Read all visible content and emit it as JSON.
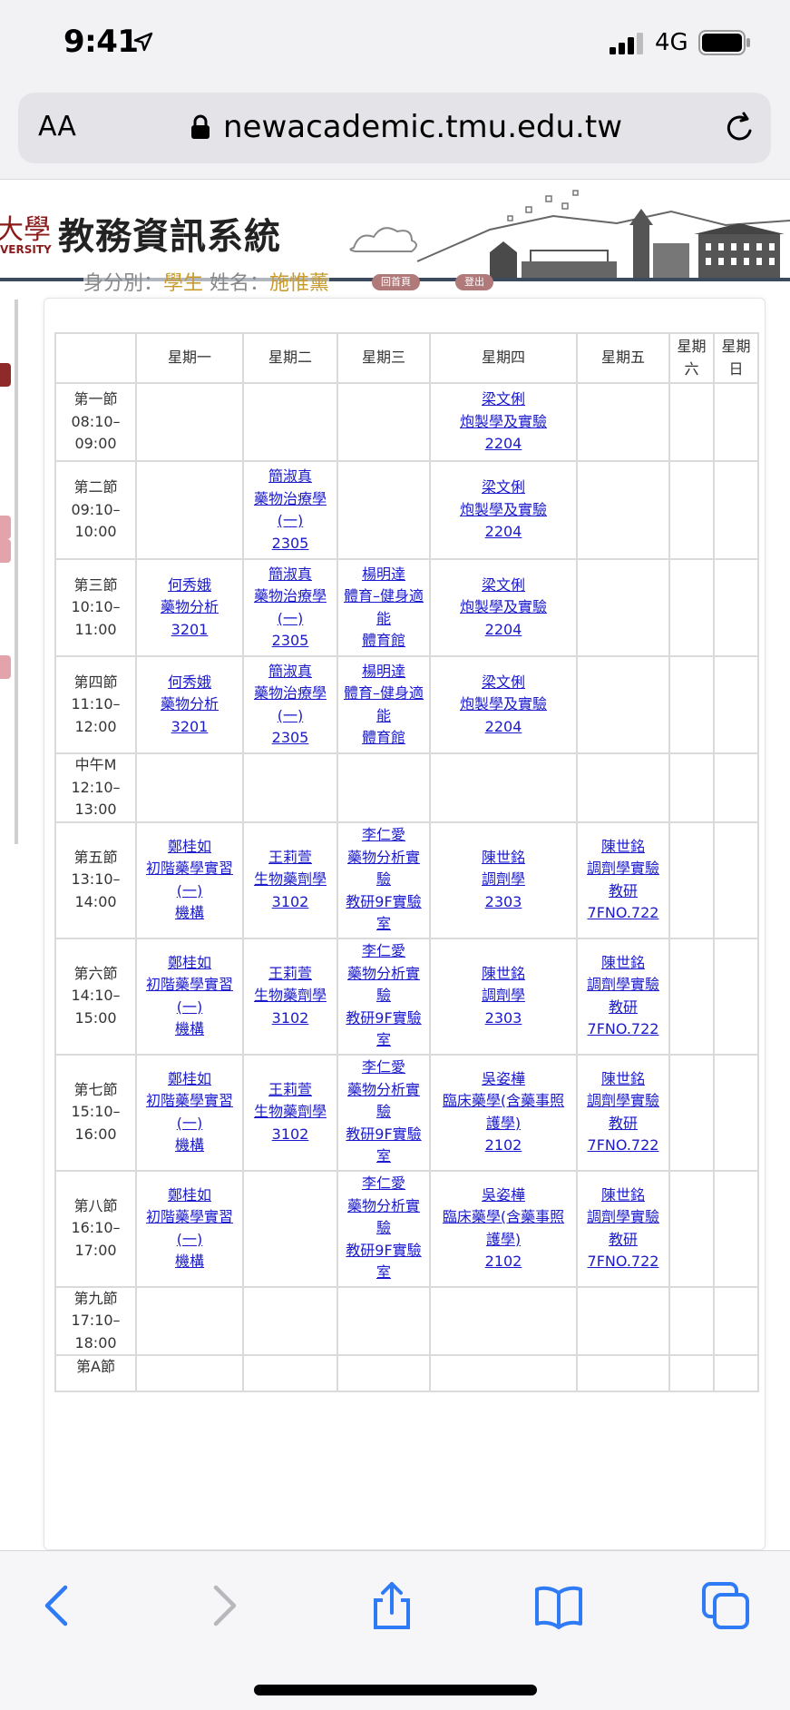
{
  "status": {
    "time": "9:41",
    "network": "4G"
  },
  "browser": {
    "text_size_label": "AA",
    "url": "newacademic.tmu.edu.tw"
  },
  "header": {
    "logo_fragment": "大學",
    "logo_sub": "VERSITY",
    "title": "教務資訊系統",
    "identity_label": "身分別：",
    "identity_value": "學生",
    "name_label": "姓名：",
    "name_value": "施惟薰",
    "home_label": "回首頁",
    "logout_label": "登出"
  },
  "schedule": {
    "columns": [
      "",
      "星期一",
      "星期二",
      "星期三",
      "星期四",
      "星期五",
      "星期六",
      "星期日"
    ],
    "rows": [
      {
        "period": [
          "第一節",
          "08:10–",
          "09:00"
        ],
        "cells": [
          [],
          [],
          [],
          [
            "梁文俐",
            "炮製學及實驗",
            "2204"
          ],
          [],
          [],
          []
        ]
      },
      {
        "period": [
          "第二節",
          "09:10–",
          "10:00"
        ],
        "cells": [
          [],
          [
            "簡淑真",
            "藥物治療學",
            "(一)",
            "2305"
          ],
          [],
          [
            "梁文俐",
            "炮製學及實驗",
            "2204"
          ],
          [],
          [],
          []
        ]
      },
      {
        "period": [
          "第三節",
          "10:10–",
          "11:00"
        ],
        "cells": [
          [
            "何秀娥",
            "藥物分析",
            "3201"
          ],
          [
            "簡淑真",
            "藥物治療學",
            "(一)",
            "2305"
          ],
          [
            "楊明達",
            "體育–健身適",
            "能",
            "體育館"
          ],
          [
            "梁文俐",
            "炮製學及實驗",
            "2204"
          ],
          [],
          [],
          []
        ]
      },
      {
        "period": [
          "第四節",
          "11:10–",
          "12:00"
        ],
        "cells": [
          [
            "何秀娥",
            "藥物分析",
            "3201"
          ],
          [
            "簡淑真",
            "藥物治療學",
            "(一)",
            "2305"
          ],
          [
            "楊明達",
            "體育–健身適",
            "能",
            "體育館"
          ],
          [
            "梁文俐",
            "炮製學及實驗",
            "2204"
          ],
          [],
          [],
          []
        ]
      },
      {
        "period": [
          "中午M",
          "12:10–",
          "13:00"
        ],
        "cells": [
          [],
          [],
          [],
          [],
          [],
          [],
          []
        ]
      },
      {
        "period": [
          "第五節",
          "13:10–",
          "14:00"
        ],
        "cells": [
          [
            "鄭桂如",
            "初階藥學實習",
            "(一)",
            "機構"
          ],
          [
            "王莉萱",
            "生物藥劑學",
            "3102"
          ],
          [
            "李仁愛",
            "藥物分析實",
            "驗",
            "教研9F實驗",
            "室"
          ],
          [
            "陳世銘",
            "調劑學",
            "2303"
          ],
          [
            "陳世銘",
            "調劑學實驗",
            "教研",
            "7FNO.722"
          ],
          [],
          []
        ]
      },
      {
        "period": [
          "第六節",
          "14:10–",
          "15:00"
        ],
        "cells": [
          [
            "鄭桂如",
            "初階藥學實習",
            "(一)",
            "機構"
          ],
          [
            "王莉萱",
            "生物藥劑學",
            "3102"
          ],
          [
            "李仁愛",
            "藥物分析實",
            "驗",
            "教研9F實驗",
            "室"
          ],
          [
            "陳世銘",
            "調劑學",
            "2303"
          ],
          [
            "陳世銘",
            "調劑學實驗",
            "教研",
            "7FNO.722"
          ],
          [],
          []
        ]
      },
      {
        "period": [
          "第七節",
          "15:10–",
          "16:00"
        ],
        "cells": [
          [
            "鄭桂如",
            "初階藥學實習",
            "(一)",
            "機構"
          ],
          [
            "王莉萱",
            "生物藥劑學",
            "3102"
          ],
          [
            "李仁愛",
            "藥物分析實",
            "驗",
            "教研9F實驗",
            "室"
          ],
          [
            "吳姿樺",
            "臨床藥學(含藥事照",
            "護學)",
            "2102"
          ],
          [
            "陳世銘",
            "調劑學實驗",
            "教研",
            "7FNO.722"
          ],
          [],
          []
        ]
      },
      {
        "period": [
          "第八節",
          "16:10–",
          "17:00"
        ],
        "cells": [
          [
            "鄭桂如",
            "初階藥學實習",
            "(一)",
            "機構"
          ],
          [],
          [
            "李仁愛",
            "藥物分析實",
            "驗",
            "教研9F實驗",
            "室"
          ],
          [
            "吳姿樺",
            "臨床藥學(含藥事照",
            "護學)",
            "2102"
          ],
          [
            "陳世銘",
            "調劑學實驗",
            "教研",
            "7FNO.722"
          ],
          [],
          []
        ]
      },
      {
        "period": [
          "第九節",
          "17:10–",
          "18:00"
        ],
        "cells": [
          [],
          [],
          [],
          [],
          [],
          [],
          []
        ]
      },
      {
        "period": [
          "第A節"
        ],
        "cells": [
          [],
          [],
          [],
          [],
          [],
          [],
          []
        ]
      }
    ]
  }
}
